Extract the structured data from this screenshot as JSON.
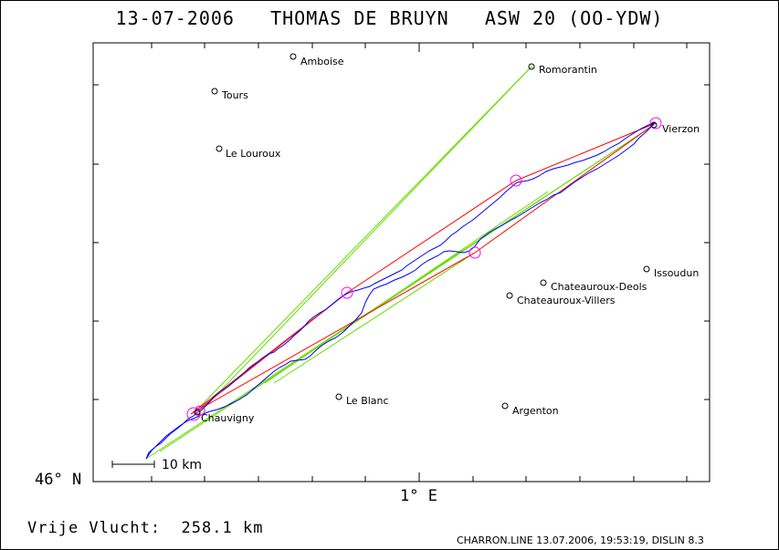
{
  "header": {
    "date": "13-07-2006",
    "pilot": "THOMAS DE BRUYN",
    "glider": "ASW 20 (OO-YDW)"
  },
  "axes": {
    "lat_label": "46° N",
    "lon_label": "1° E"
  },
  "scale": {
    "label": "10 km"
  },
  "summary": {
    "label": "Vrije Vlucht:",
    "value": "258.1 km"
  },
  "footer": "CHARRON.LINE 13.07.2006, 19:53:19, DISLIN 8.3",
  "places": [
    {
      "id": "amboise",
      "name": "Amboise"
    },
    {
      "id": "romorantin",
      "name": "Romorantin"
    },
    {
      "id": "tours",
      "name": "Tours"
    },
    {
      "id": "le-louroux",
      "name": "Le Louroux"
    },
    {
      "id": "vierzon",
      "name": "Vierzon"
    },
    {
      "id": "issoudun",
      "name": "Issoudun"
    },
    {
      "id": "chateauroux-deols",
      "name": "Chateauroux-Deols"
    },
    {
      "id": "chateauroux-villers",
      "name": "Chateauroux-Villers"
    },
    {
      "id": "le-blanc",
      "name": "Le Blanc"
    },
    {
      "id": "argenton",
      "name": "Argenton"
    },
    {
      "id": "chauvigny",
      "name": "Chauvigny"
    }
  ],
  "colors": {
    "track": "#0000ff",
    "task_legs": "#ff0000",
    "sector_lines": "#66dd00",
    "turnpoints": "#ff00ff",
    "frame": "#000000"
  }
}
